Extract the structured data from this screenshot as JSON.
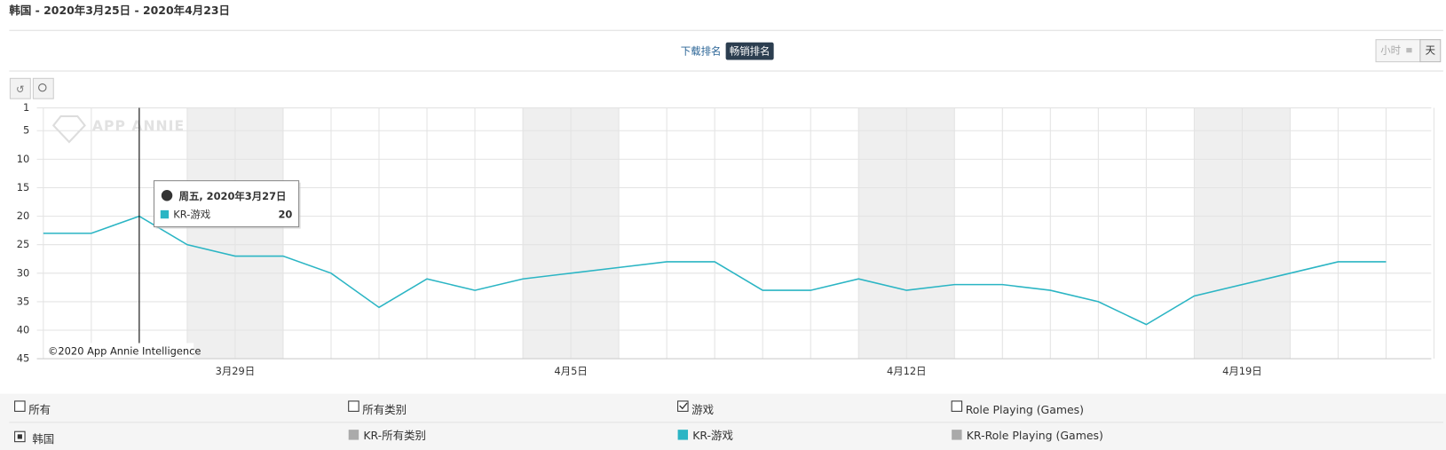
{
  "header": {
    "title": "韩国 - 2020年3月25日 - 2020年4月23日"
  },
  "rank_tabs": [
    "下载排名",
    "畅销排名"
  ],
  "granularity": [
    "小时",
    "天"
  ],
  "watermark": "APP ANNIE",
  "copyright": "©2020 App Annie Intelligence",
  "tooltip": {
    "date": "周五, 2020年3月27日"
  },
  "chart_data": {
    "type": "line",
    "categories": [
      null,
      null,
      null,
      null,
      "3月29日",
      null,
      null,
      null,
      null,
      null,
      null,
      "4月5日",
      null,
      null,
      null,
      null,
      null,
      null,
      "4月12日",
      null,
      null,
      null,
      null,
      null,
      null,
      "4月19日",
      null,
      null,
      null
    ],
    "series": [
      {
        "name": "KR-游戏",
        "color": "#2bb5c4",
        "values": [
          23,
          23,
          20,
          25,
          27,
          27,
          30,
          36,
          31,
          33,
          31,
          30,
          29,
          28,
          28,
          33,
          33,
          31,
          33,
          32,
          32,
          33,
          35,
          39,
          34,
          32,
          30,
          28,
          28
        ]
      }
    ],
    "ylim": [
      45,
      1
    ],
    "yticks": [
      1,
      5,
      10,
      15,
      20,
      25,
      30,
      35,
      40,
      45
    ],
    "grid": true
  },
  "filters": [
    {
      "label": "所有",
      "checked": false
    },
    {
      "label": "所有类别",
      "checked": false
    },
    {
      "label": "游戏",
      "checked": true
    },
    {
      "label": "Role Playing (Games)",
      "checked": false
    }
  ],
  "legend": {
    "country": "韩国",
    "others": [
      {
        "name": "KR-所有类别",
        "color": "#aaaaaa"
      },
      {
        "name": "KR-Role Playing (Games)",
        "color": "#aaaaaa"
      }
    ]
  }
}
